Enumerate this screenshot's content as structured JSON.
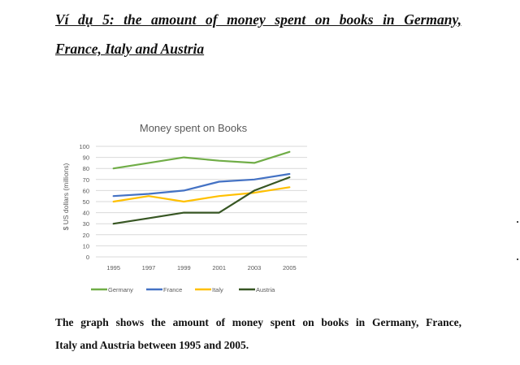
{
  "heading": {
    "line1": "Ví dụ 5: the amount of money spent on books in Germany,",
    "line2": "France, Italy and Austria"
  },
  "caption": {
    "line1": "The graph shows the amount of money spent on books in Germany, France,",
    "line2": "Italy and Austria between 1995 and 2005."
  },
  "chart_data": {
    "type": "line",
    "title": "Money spent on Books",
    "xlabel": "",
    "ylabel": "$ US dollars (millions)",
    "x": [
      "1995",
      "1997",
      "1999",
      "2001",
      "2003",
      "2005"
    ],
    "ylim": [
      0,
      100
    ],
    "yticks": [
      0,
      10,
      20,
      30,
      40,
      50,
      60,
      70,
      80,
      90,
      100
    ],
    "grid": true,
    "legend_position": "bottom",
    "series": [
      {
        "name": "Germany",
        "color": "#70AD47",
        "values": [
          80,
          85,
          90,
          87,
          85,
          95
        ]
      },
      {
        "name": "France",
        "color": "#4472C4",
        "values": [
          55,
          57,
          60,
          68,
          70,
          75
        ]
      },
      {
        "name": "Italy",
        "color": "#FFC000",
        "values": [
          50,
          55,
          50,
          55,
          58,
          63
        ]
      },
      {
        "name": "Austria",
        "color": "#375623",
        "values": [
          30,
          35,
          40,
          40,
          60,
          72
        ]
      }
    ]
  }
}
